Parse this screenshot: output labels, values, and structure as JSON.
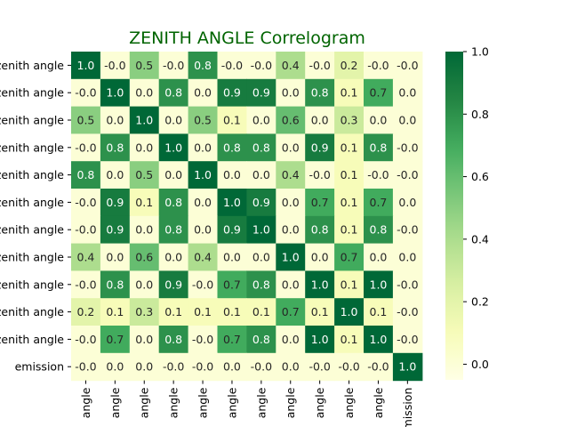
{
  "chart_data": {
    "type": "heatmap",
    "title": "ZENITH ANGLE Correlogram",
    "row_labels": [
      "zenith angle",
      "zenith angle",
      "zenith angle",
      "zenith angle",
      "zenith angle",
      "zenith angle",
      "zenith angle",
      "zenith angle",
      "zenith angle",
      "zenith angle",
      "zenith angle",
      "emission"
    ],
    "col_labels": [
      "angle",
      "angle",
      "angle",
      "angle",
      "angle",
      "angle",
      "angle",
      "angle",
      "angle",
      "angle",
      "angle",
      "emission"
    ],
    "value_labels": [
      [
        "1.0",
        "-0.0",
        "0.5",
        "-0.0",
        "0.8",
        "-0.0",
        "-0.0",
        "0.4",
        "-0.0",
        "0.2",
        "-0.0",
        "-0.0"
      ],
      [
        "-0.0",
        "1.0",
        "0.0",
        "0.8",
        "0.0",
        "0.9",
        "0.9",
        "0.0",
        "0.8",
        "0.1",
        "0.7",
        "0.0"
      ],
      [
        "0.5",
        "0.0",
        "1.0",
        "0.0",
        "0.5",
        "0.1",
        "0.0",
        "0.6",
        "0.0",
        "0.3",
        "0.0",
        "0.0"
      ],
      [
        "-0.0",
        "0.8",
        "0.0",
        "1.0",
        "0.0",
        "0.8",
        "0.8",
        "0.0",
        "0.9",
        "0.1",
        "0.8",
        "-0.0"
      ],
      [
        "0.8",
        "0.0",
        "0.5",
        "0.0",
        "1.0",
        "0.0",
        "0.0",
        "0.4",
        "-0.0",
        "0.1",
        "-0.0",
        "-0.0"
      ],
      [
        "-0.0",
        "0.9",
        "0.1",
        "0.8",
        "0.0",
        "1.0",
        "0.9",
        "0.0",
        "0.7",
        "0.1",
        "0.7",
        "0.0"
      ],
      [
        "-0.0",
        "0.9",
        "0.0",
        "0.8",
        "0.0",
        "0.9",
        "1.0",
        "0.0",
        "0.8",
        "0.1",
        "0.8",
        "-0.0"
      ],
      [
        "0.4",
        "0.0",
        "0.6",
        "0.0",
        "0.4",
        "0.0",
        "0.0",
        "1.0",
        "0.0",
        "0.7",
        "0.0",
        "0.0"
      ],
      [
        "-0.0",
        "0.8",
        "0.0",
        "0.9",
        "-0.0",
        "0.7",
        "0.8",
        "0.0",
        "1.0",
        "0.1",
        "1.0",
        "-0.0"
      ],
      [
        "0.2",
        "0.1",
        "0.3",
        "0.1",
        "0.1",
        "0.1",
        "0.1",
        "0.7",
        "0.1",
        "1.0",
        "0.1",
        "-0.0"
      ],
      [
        "-0.0",
        "0.7",
        "0.0",
        "0.8",
        "-0.0",
        "0.7",
        "0.8",
        "0.0",
        "1.0",
        "0.1",
        "1.0",
        "-0.0"
      ],
      [
        "-0.0",
        "0.0",
        "0.0",
        "-0.0",
        "-0.0",
        "0.0",
        "-0.0",
        "0.0",
        "-0.0",
        "-0.0",
        "-0.0",
        "1.0"
      ]
    ],
    "colorbar": {
      "min": -0.05,
      "max": 1.0,
      "ticks": [
        "0.0",
        "0.2",
        "0.4",
        "0.6",
        "0.8",
        "1.0"
      ],
      "tick_values": [
        0.0,
        0.2,
        0.4,
        0.6,
        0.8,
        1.0
      ]
    },
    "colormap": "YlGn",
    "title_color": "#006400"
  }
}
